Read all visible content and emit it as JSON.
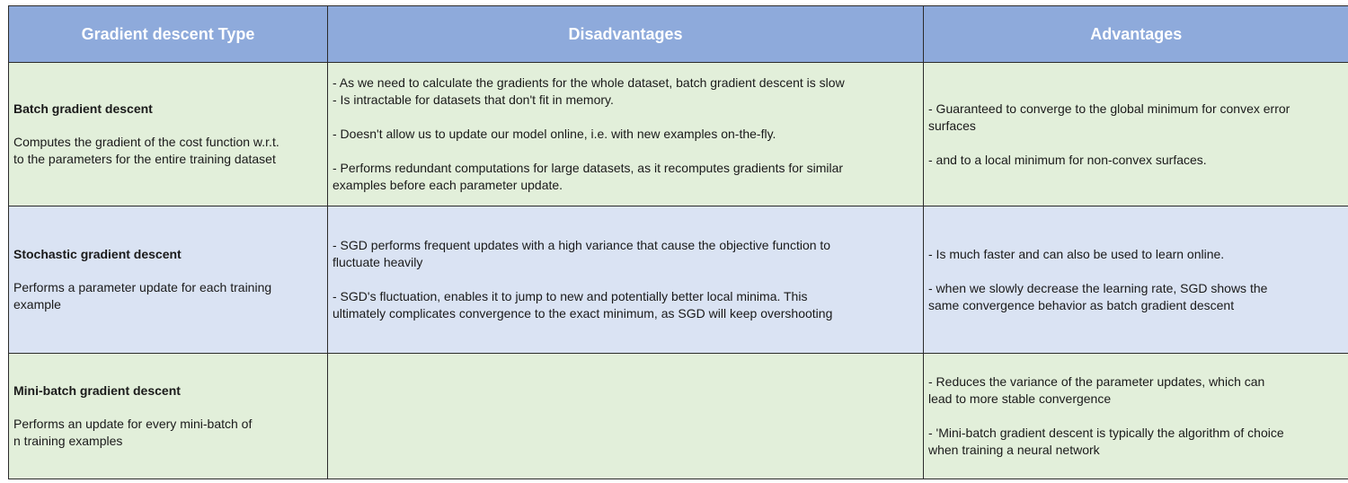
{
  "table": {
    "headers": [
      "Gradient descent Type",
      "Disadvantages",
      "Advantages"
    ],
    "rows": [
      {
        "type_title": "Batch gradient descent",
        "type_desc_lines": [
          "Computes the gradient of the cost function w.r.t.",
          "to the parameters  for the entire training dataset"
        ],
        "disadvantages": [
          "- As we need to calculate the gradients for the whole dataset, batch gradient descent is slow",
          "- Is intractable for datasets that don't fit in memory.",
          "- Doesn't allow us to update our model online, i.e. with new examples on-the-fly.",
          "- Performs redundant computations for large datasets, as it recomputes gradients for similar",
          "examples before each parameter update."
        ],
        "advantages": [
          "- Guaranteed to converge to the global minimum for convex error",
          "surfaces",
          "- and to a local minimum for non-convex surfaces."
        ]
      },
      {
        "type_title": "Stochastic gradient descent",
        "type_desc_lines": [
          "Performs a parameter update for each training",
          "example"
        ],
        "disadvantages": [
          "- SGD performs frequent updates with a high variance that cause the objective function to",
          "fluctuate heavily",
          "- SGD's fluctuation, enables it to jump to new and potentially better local minima. This",
          "ultimately complicates convergence to the exact minimum, as SGD will keep overshooting"
        ],
        "advantages": [
          "- Is much faster and can also be used to learn online.",
          "- when we slowly decrease the learning rate, SGD shows the",
          "same convergence behavior as batch gradient descent"
        ]
      },
      {
        "type_title": "Mini-batch gradient descent",
        "type_desc_lines": [
          "Performs an update for every mini-batch of",
          "n training examples"
        ],
        "disadvantages": [],
        "advantages": [
          "-  Reduces the variance of the parameter updates, which can",
          "lead to more stable convergence",
          "- 'Mini-batch gradient descent is typically the algorithm of choice",
          "when training a neural network"
        ]
      }
    ]
  },
  "colors": {
    "header_bg": "#8eaadb",
    "header_text": "#ffffff",
    "row_green": "#e2efda",
    "row_blue": "#dae3f3",
    "border": "#2b2b2b"
  }
}
